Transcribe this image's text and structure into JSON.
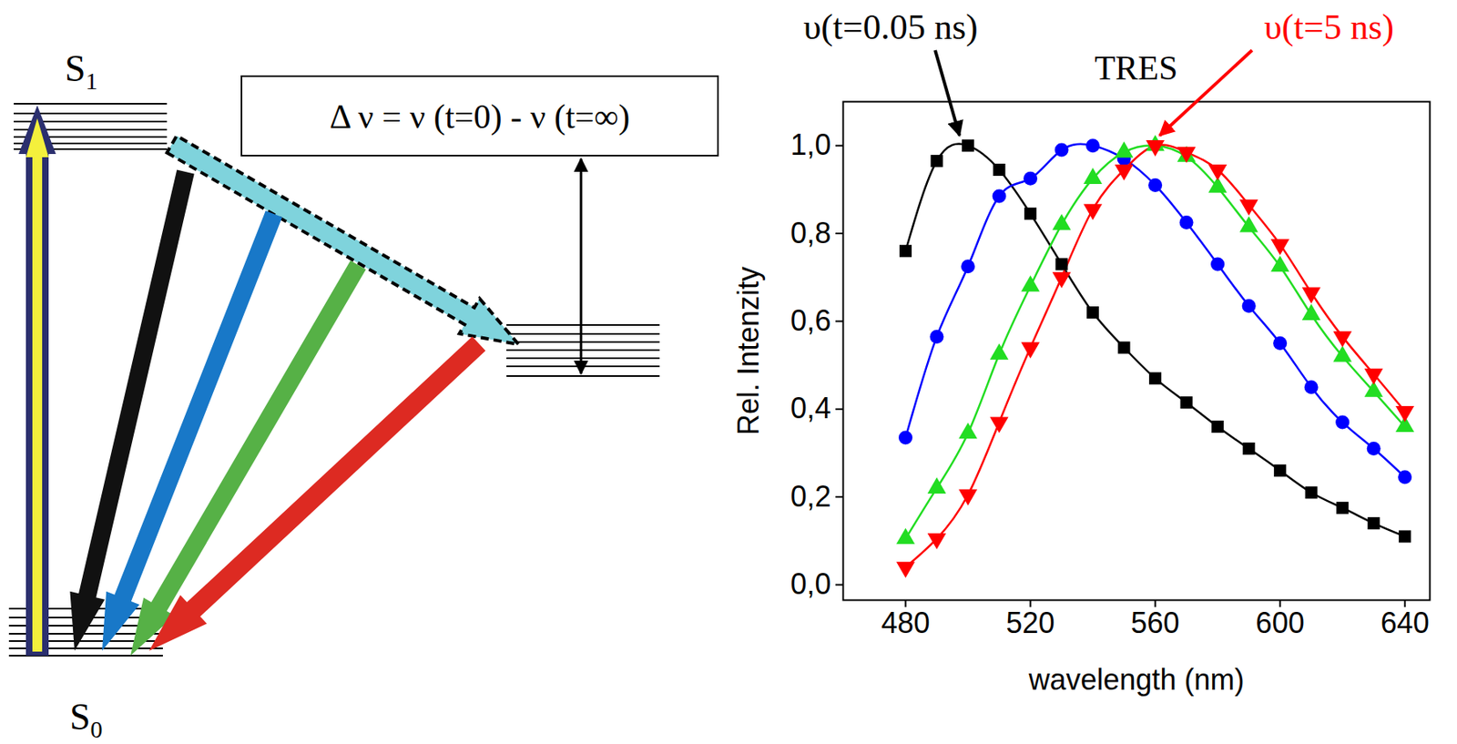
{
  "chart_data": {
    "type": "line",
    "title": "TRES",
    "x_label": "wavelength (nm)",
    "y_label": "Rel. Intenzity",
    "x": [
      480,
      490,
      500,
      510,
      520,
      530,
      540,
      550,
      560,
      570,
      580,
      590,
      600,
      610,
      620,
      630,
      640
    ],
    "series": [
      {
        "color": "#000000",
        "marker": "square",
        "line_style": "solid",
        "values": [
          0.76,
          0.965,
          1.0,
          0.945,
          0.845,
          0.73,
          0.62,
          0.54,
          0.47,
          0.415,
          0.36,
          0.31,
          0.26,
          0.21,
          0.175,
          0.14,
          0.11
        ]
      },
      {
        "color": "#0000ff",
        "marker": "circle",
        "line_style": "solid",
        "values": [
          0.335,
          0.565,
          0.725,
          0.885,
          0.925,
          0.99,
          1.0,
          0.97,
          0.91,
          0.825,
          0.73,
          0.635,
          0.55,
          0.45,
          0.37,
          0.31,
          0.245
        ]
      },
      {
        "color": "#22dd22",
        "marker": "triangle",
        "line_style": "solid",
        "values": [
          0.105,
          0.22,
          0.345,
          0.525,
          0.68,
          0.82,
          0.925,
          0.985,
          1.0,
          0.975,
          0.905,
          0.815,
          0.725,
          0.615,
          0.52,
          0.44,
          0.36
        ]
      },
      {
        "color": "#ff0000",
        "marker": "triangle-down",
        "line_style": "solid",
        "values": [
          0.04,
          0.105,
          0.205,
          0.37,
          0.54,
          0.7,
          0.855,
          0.945,
          1.0,
          0.985,
          0.945,
          0.865,
          0.775,
          0.665,
          0.565,
          0.48,
          0.395
        ]
      }
    ],
    "xlim": [
      460,
      648
    ],
    "xticks": [
      480,
      520,
      560,
      600,
      640
    ],
    "ylim": [
      -0.035,
      1.1
    ],
    "yticks": [
      {
        "value": 0,
        "label": "0,0"
      },
      {
        "value": 0.2,
        "label": "0,2"
      },
      {
        "value": 0.4,
        "label": "0,4"
      },
      {
        "value": 0.6,
        "label": "0,6"
      },
      {
        "value": 0.8,
        "label": "0,8"
      },
      {
        "value": 1.0,
        "label": "1,0"
      }
    ],
    "grid": false,
    "annotations": [
      {
        "text": "υ(t=0.05 ns)",
        "x": 500,
        "y": 1.0,
        "color": "#000000"
      },
      {
        "text": "υ(t=5 ns)",
        "x": 560,
        "y": 1.0,
        "color": "#ff0000"
      }
    ]
  },
  "diagram": {
    "upper_state": {
      "text": "S",
      "subscript": "1"
    },
    "lower_state": {
      "text": "S",
      "subscript": "0"
    },
    "equation": "Δ ν = ν (t=0) - ν (t=∞)"
  }
}
